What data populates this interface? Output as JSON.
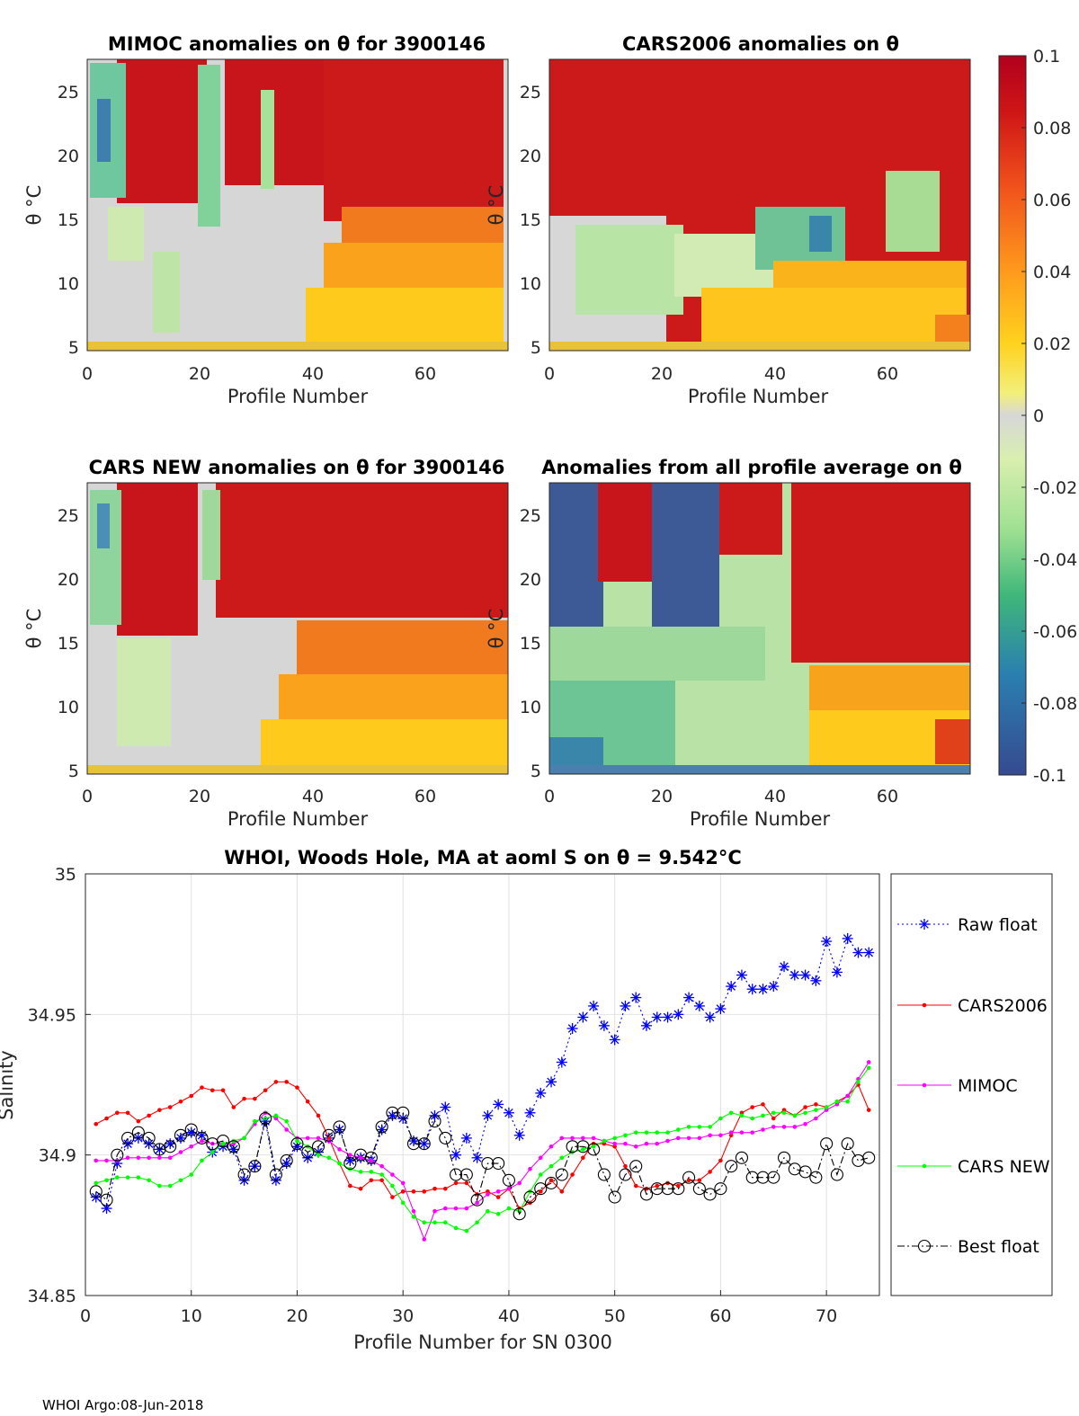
{
  "footer": "WHOI Argo:08-Jun-2018",
  "colorbar": {
    "ticks": [
      "0.1",
      "0.08",
      "0.06",
      "0.04",
      "0.02",
      "0",
      "-0.02",
      "-0.04",
      "-0.06",
      "-0.08",
      "-0.1"
    ],
    "range": [
      -0.1,
      0.1
    ]
  },
  "anomaly_panels": [
    {
      "title": "MIMOC anomalies on θ  for 3900146",
      "xlabel": "Profile Number",
      "ylabel": "θ °C",
      "xticks": [
        "0",
        "20",
        "40",
        "60"
      ],
      "yticks": [
        "5",
        "10",
        "15",
        "20",
        "25"
      ]
    },
    {
      "title": "CARS2006 anomalies on θ",
      "xlabel": "Profile Number",
      "ylabel": "θ °C",
      "xticks": [
        "0",
        "20",
        "40",
        "60"
      ],
      "yticks": [
        "5",
        "10",
        "15",
        "20",
        "25"
      ]
    },
    {
      "title": "CARS NEW anomalies on θ for 3900146",
      "xlabel": "Profile Number",
      "ylabel": "θ °C",
      "xticks": [
        "0",
        "20",
        "40",
        "60"
      ],
      "yticks": [
        "5",
        "10",
        "15",
        "20",
        "25"
      ]
    },
    {
      "title": "Anomalies from all profile average on θ",
      "xlabel": "Profile Number",
      "ylabel": "θ °C",
      "xticks": [
        "0",
        "20",
        "40",
        "60"
      ],
      "yticks": [
        "5",
        "10",
        "15",
        "20",
        "25"
      ]
    }
  ],
  "chart_data": {
    "type": "line",
    "title": "WHOI, Woods Hole, MA at aoml S on θ = 9.542°C",
    "xlabel": "Profile Number for SN 0300",
    "ylabel": "Salinity",
    "xlim": [
      0,
      75
    ],
    "ylim": [
      34.85,
      35.0
    ],
    "xticks": [
      "0",
      "10",
      "20",
      "30",
      "40",
      "50",
      "60",
      "70"
    ],
    "yticks": [
      "34.85",
      "34.9",
      "34.95",
      "35"
    ],
    "grid": true,
    "legend_position": "right-outside",
    "series": [
      {
        "name": "Raw float",
        "color": "#0000ff",
        "style": "dotted-star",
        "x": [
          1,
          2,
          3,
          4,
          5,
          6,
          7,
          8,
          9,
          10,
          11,
          12,
          13,
          14,
          15,
          16,
          17,
          18,
          19,
          20,
          21,
          22,
          23,
          24,
          25,
          26,
          27,
          28,
          29,
          30,
          31,
          32,
          33,
          34,
          35,
          36,
          37,
          38,
          39,
          40,
          41,
          42,
          43,
          44,
          45,
          46,
          47,
          48,
          49,
          50,
          51,
          52,
          53,
          54,
          55,
          56,
          57,
          58,
          59,
          60,
          61,
          62,
          63,
          64,
          65,
          66,
          67,
          68,
          69,
          70,
          71,
          72,
          73,
          74
        ],
        "values": [
          34.885,
          34.881,
          34.897,
          34.904,
          34.906,
          34.904,
          34.902,
          34.904,
          34.906,
          34.908,
          34.907,
          34.901,
          34.903,
          34.902,
          34.891,
          34.896,
          34.912,
          34.891,
          34.897,
          34.903,
          34.899,
          34.901,
          34.906,
          34.909,
          34.898,
          34.899,
          34.898,
          34.909,
          34.914,
          34.913,
          34.905,
          34.904,
          34.914,
          34.917,
          34.9,
          34.906,
          34.899,
          34.914,
          34.918,
          34.915,
          34.907,
          34.915,
          34.922,
          34.926,
          34.933,
          34.945,
          34.949,
          34.953,
          34.946,
          34.941,
          34.953,
          34.956,
          34.946,
          34.949,
          34.949,
          34.95,
          34.956,
          34.953,
          34.949,
          34.952,
          34.96,
          34.964,
          34.959,
          34.959,
          34.96,
          34.967,
          34.964,
          34.964,
          34.962,
          34.976,
          34.965,
          34.977,
          34.972,
          34.972
        ]
      },
      {
        "name": "CARS2006",
        "color": "#ff0000",
        "style": "solid-dot",
        "x": [
          1,
          2,
          3,
          4,
          5,
          6,
          7,
          8,
          9,
          10,
          11,
          12,
          13,
          14,
          15,
          16,
          17,
          18,
          19,
          20,
          21,
          22,
          23,
          24,
          25,
          26,
          27,
          28,
          29,
          30,
          31,
          32,
          33,
          34,
          35,
          36,
          37,
          38,
          39,
          40,
          41,
          42,
          43,
          44,
          45,
          46,
          47,
          48,
          49,
          50,
          51,
          52,
          53,
          54,
          55,
          56,
          57,
          58,
          59,
          60,
          61,
          62,
          63,
          64,
          65,
          66,
          67,
          68,
          69,
          70,
          71,
          72,
          73,
          74
        ],
        "values": [
          34.911,
          34.913,
          34.915,
          34.915,
          34.912,
          34.914,
          34.916,
          34.917,
          34.919,
          34.921,
          34.924,
          34.923,
          34.923,
          34.917,
          34.92,
          34.92,
          34.923,
          34.926,
          34.926,
          34.924,
          34.919,
          34.914,
          34.906,
          34.897,
          34.889,
          34.888,
          34.891,
          34.891,
          34.885,
          34.887,
          34.887,
          34.887,
          34.888,
          34.888,
          34.89,
          34.89,
          34.886,
          34.887,
          34.885,
          34.888,
          34.881,
          34.883,
          34.887,
          34.891,
          34.887,
          34.893,
          34.899,
          34.904,
          34.904,
          34.903,
          34.896,
          34.889,
          34.888,
          34.889,
          34.89,
          34.889,
          34.891,
          34.891,
          34.894,
          34.898,
          34.907,
          34.915,
          34.917,
          34.918,
          34.913,
          34.916,
          34.914,
          34.917,
          34.918,
          34.917,
          34.919,
          34.921,
          34.925,
          34.916
        ]
      },
      {
        "name": "MIMOC",
        "color": "#ff00ff",
        "style": "solid-dot",
        "x": [
          1,
          2,
          3,
          4,
          5,
          6,
          7,
          8,
          9,
          10,
          11,
          12,
          13,
          14,
          15,
          16,
          17,
          18,
          19,
          20,
          21,
          22,
          23,
          24,
          25,
          26,
          27,
          28,
          29,
          30,
          31,
          32,
          33,
          34,
          35,
          36,
          37,
          38,
          39,
          40,
          41,
          42,
          43,
          44,
          45,
          46,
          47,
          48,
          49,
          50,
          51,
          52,
          53,
          54,
          55,
          56,
          57,
          58,
          59,
          60,
          61,
          62,
          63,
          64,
          65,
          66,
          67,
          68,
          69,
          70,
          71,
          72,
          73,
          74
        ],
        "values": [
          34.898,
          34.898,
          34.898,
          34.899,
          34.899,
          34.899,
          34.899,
          34.899,
          34.901,
          34.903,
          34.905,
          34.904,
          34.904,
          34.904,
          34.906,
          34.911,
          34.915,
          34.913,
          34.909,
          34.906,
          34.906,
          34.906,
          34.905,
          34.902,
          34.9,
          34.899,
          34.898,
          34.896,
          34.893,
          34.89,
          34.88,
          34.87,
          34.88,
          34.881,
          34.881,
          34.881,
          34.883,
          34.886,
          34.887,
          34.888,
          34.89,
          34.895,
          34.899,
          34.903,
          34.906,
          34.906,
          34.906,
          34.906,
          34.905,
          34.904,
          34.904,
          34.903,
          34.904,
          34.904,
          34.905,
          34.906,
          34.906,
          34.906,
          34.907,
          34.907,
          34.908,
          34.908,
          34.908,
          34.909,
          34.91,
          34.91,
          34.91,
          34.911,
          34.913,
          34.916,
          34.918,
          34.921,
          34.927,
          34.933
        ]
      },
      {
        "name": "CARS NEW",
        "color": "#00ff00",
        "style": "solid-dot",
        "x": [
          1,
          2,
          3,
          4,
          5,
          6,
          7,
          8,
          9,
          10,
          11,
          12,
          13,
          14,
          15,
          16,
          17,
          18,
          19,
          20,
          21,
          22,
          23,
          24,
          25,
          26,
          27,
          28,
          29,
          30,
          31,
          32,
          33,
          34,
          35,
          36,
          37,
          38,
          39,
          40,
          41,
          42,
          43,
          44,
          45,
          46,
          47,
          48,
          49,
          50,
          51,
          52,
          53,
          54,
          55,
          56,
          57,
          58,
          59,
          60,
          61,
          62,
          63,
          64,
          65,
          66,
          67,
          68,
          69,
          70,
          71,
          72,
          73,
          74
        ],
        "values": [
          34.89,
          34.891,
          34.892,
          34.892,
          34.892,
          34.891,
          34.889,
          34.889,
          34.891,
          34.893,
          34.898,
          34.901,
          34.904,
          34.905,
          34.906,
          34.912,
          34.913,
          34.914,
          34.912,
          34.905,
          34.903,
          34.9,
          34.899,
          34.897,
          34.895,
          34.894,
          34.894,
          34.893,
          34.889,
          34.883,
          34.878,
          34.876,
          34.876,
          34.876,
          34.874,
          34.873,
          34.876,
          34.88,
          34.879,
          34.881,
          34.88,
          34.887,
          34.893,
          34.896,
          34.899,
          34.901,
          34.902,
          34.903,
          34.905,
          34.906,
          34.907,
          34.908,
          34.908,
          34.908,
          34.908,
          34.909,
          34.91,
          34.91,
          34.91,
          34.913,
          34.915,
          34.914,
          34.913,
          34.914,
          34.915,
          34.915,
          34.914,
          34.915,
          34.916,
          34.917,
          34.919,
          34.919,
          34.926,
          34.931
        ]
      },
      {
        "name": "Best float",
        "color": "#000000",
        "style": "dashdot-circle",
        "x": [
          1,
          2,
          3,
          4,
          5,
          6,
          7,
          8,
          9,
          10,
          11,
          12,
          13,
          14,
          15,
          16,
          17,
          18,
          19,
          20,
          21,
          22,
          23,
          24,
          25,
          26,
          27,
          28,
          29,
          30,
          31,
          32,
          33,
          34,
          35,
          36,
          37,
          38,
          39,
          40,
          41,
          42,
          43,
          44,
          45,
          46,
          47,
          48,
          49,
          50,
          51,
          52,
          53,
          54,
          55,
          56,
          57,
          58,
          59,
          60,
          61,
          62,
          63,
          64,
          65,
          66,
          67,
          68,
          69,
          70,
          71,
          72,
          73,
          74
        ],
        "values": [
          34.887,
          34.884,
          34.9,
          34.906,
          34.908,
          34.906,
          34.902,
          34.903,
          34.907,
          34.909,
          34.906,
          34.904,
          34.905,
          34.903,
          34.893,
          34.896,
          34.913,
          34.893,
          34.898,
          34.904,
          34.901,
          34.903,
          34.907,
          34.91,
          34.897,
          34.9,
          34.899,
          34.91,
          34.915,
          34.915,
          34.904,
          34.904,
          34.912,
          34.906,
          34.893,
          34.893,
          34.884,
          34.897,
          34.897,
          34.891,
          34.879,
          34.885,
          34.888,
          34.89,
          34.893,
          34.903,
          34.903,
          34.902,
          34.893,
          34.885,
          34.893,
          34.896,
          34.886,
          34.888,
          34.888,
          34.888,
          34.892,
          34.888,
          34.886,
          34.888,
          34.896,
          34.899,
          34.892,
          34.892,
          34.892,
          34.899,
          34.895,
          34.894,
          34.892,
          34.904,
          34.893,
          34.904,
          34.898,
          34.899
        ]
      }
    ]
  }
}
